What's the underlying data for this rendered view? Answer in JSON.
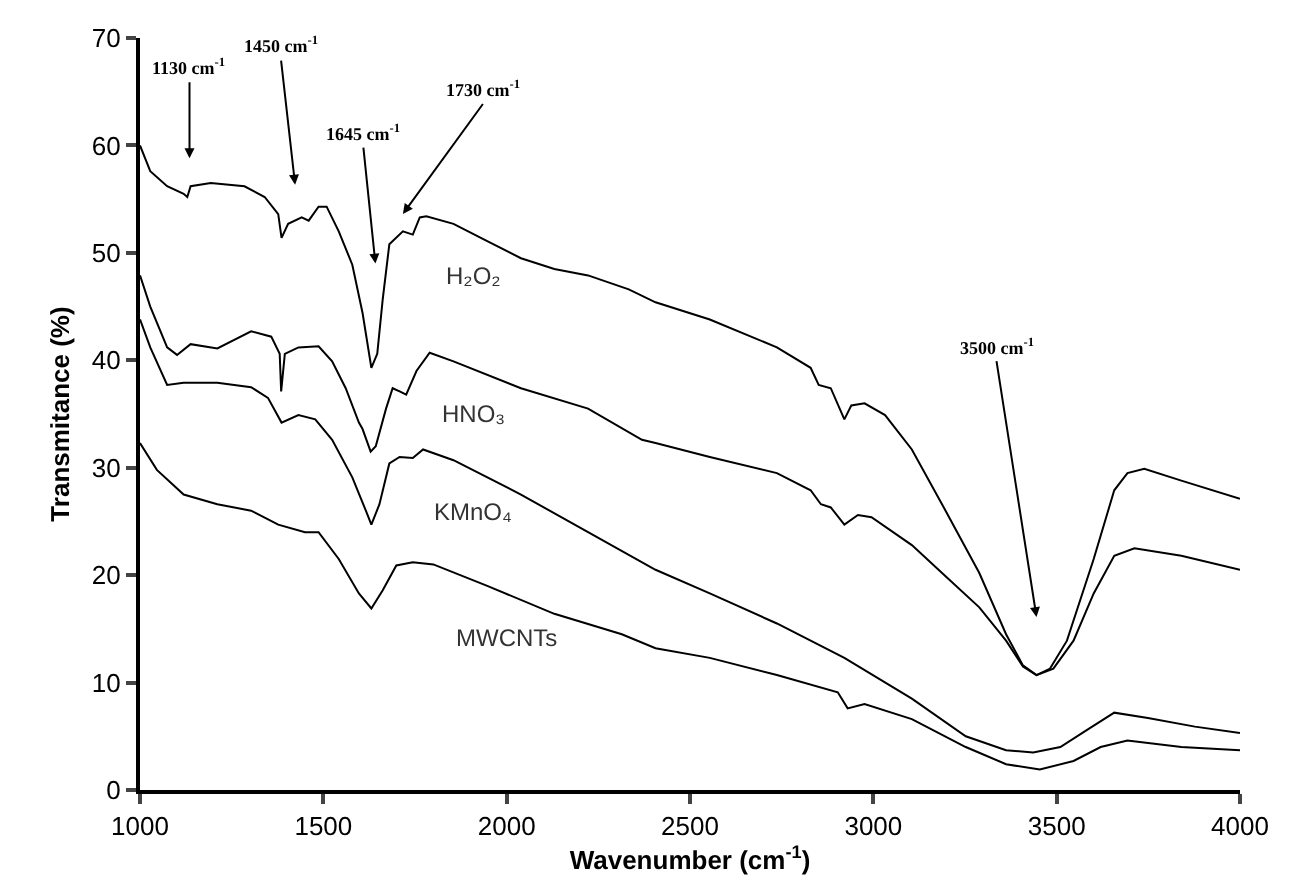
{
  "chart_data": {
    "type": "line",
    "xlabel": "Wavenumber (cm$^{-1}$)",
    "ylabel": "Transmitance (%)",
    "xlim": [
      1000,
      4000
    ],
    "xticks": [
      1000,
      1500,
      2000,
      2500,
      3000,
      3500,
      4000
    ],
    "ylim": [
      0,
      70
    ],
    "yticks": [
      0,
      10,
      20,
      30,
      40,
      50,
      60,
      70
    ],
    "legend": false,
    "marker": "none",
    "line_style": "solid",
    "series": [
      {
        "name": "H₂O₂",
        "color": "#000000",
        "x": [
          1000,
          1028,
          1074,
          1119,
          1129,
          1138,
          1193,
          1285,
          1340,
          1377,
          1386,
          1404,
          1441,
          1460,
          1487,
          1509,
          1542,
          1579,
          1607,
          1631,
          1647,
          1662,
          1680,
          1717,
          1744,
          1763,
          1781,
          1855,
          1947,
          2039,
          2130,
          2222,
          2333,
          2406,
          2554,
          2737,
          2829,
          2851,
          2884,
          2921,
          2940,
          2976,
          3032,
          3105,
          3197,
          3289,
          3362,
          3408,
          3445,
          3482,
          3528,
          3601,
          3657,
          3693,
          3739,
          3840,
          4000
        ],
        "values": [
          60,
          57.6,
          56.2,
          55.5,
          55.2,
          56.2,
          56.5,
          56.2,
          55.2,
          53.6,
          51.4,
          52.7,
          53.3,
          53.0,
          54.3,
          54.3,
          52.0,
          48.9,
          44.4,
          39.3,
          40.6,
          45.7,
          50.8,
          52.0,
          51.7,
          53.3,
          53.4,
          52.7,
          51.1,
          49.5,
          48.5,
          47.9,
          46.6,
          45.4,
          43.8,
          41.2,
          39.3,
          37.7,
          37.4,
          34.5,
          35.8,
          36.0,
          34.9,
          31.7,
          26.0,
          20.2,
          14.5,
          11.6,
          10.7,
          11.3,
          13.9,
          21.5,
          27.9,
          29.5,
          29.9,
          28.8,
          27.1
        ]
      },
      {
        "name": "HNO₃",
        "color": "#000000",
        "x": [
          1000,
          1028,
          1074,
          1101,
          1138,
          1211,
          1303,
          1358,
          1381,
          1385,
          1395,
          1432,
          1487,
          1524,
          1561,
          1597,
          1607,
          1629,
          1643,
          1671,
          1689,
          1708,
          1726,
          1754,
          1790,
          1855,
          2039,
          2222,
          2369,
          2406,
          2554,
          2737,
          2829,
          2857,
          2884,
          2921,
          2958,
          2995,
          3105,
          3197,
          3289,
          3362,
          3408,
          3445,
          3491,
          3546,
          3601,
          3657,
          3712,
          3840,
          4000
        ],
        "values": [
          47.9,
          45.0,
          41.2,
          40.5,
          41.5,
          41.1,
          42.7,
          42.2,
          40.6,
          37.1,
          40.6,
          41.2,
          41.3,
          39.9,
          37.4,
          34.2,
          33.6,
          31.5,
          32.0,
          35.5,
          37.4,
          37.1,
          36.8,
          39.0,
          40.7,
          39.9,
          37.4,
          35.5,
          32.6,
          32.3,
          31.0,
          29.5,
          27.9,
          26.6,
          26.3,
          24.7,
          25.6,
          25.4,
          22.8,
          19.9,
          17.0,
          13.9,
          11.5,
          10.7,
          11.3,
          13.9,
          18.3,
          21.8,
          22.5,
          21.8,
          20.5
        ]
      },
      {
        "name": "KMnO₄",
        "color": "#000000",
        "x": [
          1000,
          1028,
          1074,
          1119,
          1211,
          1303,
          1349,
          1386,
          1432,
          1478,
          1524,
          1579,
          1616,
          1631,
          1653,
          1680,
          1708,
          1744,
          1772,
          1855,
          2039,
          2222,
          2406,
          2554,
          2737,
          2921,
          3105,
          3252,
          3362,
          3436,
          3510,
          3583,
          3657,
          3749,
          3877,
          4000
        ],
        "values": [
          43.8,
          41.2,
          37.7,
          37.9,
          37.9,
          37.5,
          36.5,
          34.2,
          34.9,
          34.5,
          32.6,
          29.1,
          26.0,
          24.7,
          26.6,
          30.4,
          31.0,
          30.9,
          31.7,
          30.7,
          27.5,
          24.0,
          20.5,
          18.3,
          15.5,
          12.3,
          8.5,
          5.0,
          3.7,
          3.5,
          4.0,
          5.6,
          7.2,
          6.7,
          5.9,
          5.3
        ]
      },
      {
        "name": "MWCNTs",
        "color": "#000000",
        "x": [
          1000,
          1046,
          1119,
          1211,
          1303,
          1377,
          1450,
          1487,
          1542,
          1597,
          1631,
          1662,
          1699,
          1744,
          1800,
          1947,
          2130,
          2314,
          2406,
          2554,
          2737,
          2903,
          2930,
          2976,
          3105,
          3252,
          3362,
          3454,
          3546,
          3620,
          3693,
          3840,
          4000
        ],
        "values": [
          32.3,
          29.8,
          27.5,
          26.6,
          26.0,
          24.7,
          24.0,
          24.0,
          21.5,
          18.3,
          16.9,
          18.6,
          20.9,
          21.2,
          21.0,
          19.0,
          16.4,
          14.5,
          13.2,
          12.3,
          10.7,
          9.1,
          7.6,
          8.0,
          6.6,
          4.0,
          2.4,
          1.9,
          2.7,
          4.0,
          4.6,
          4.0,
          3.7
        ]
      }
    ],
    "annotations": [
      "1130 cm$^{-1}$",
      "1450 cm$^{-1}$",
      "1645 cm$^{-1}$",
      "1730 cm$^{-1}$",
      "3500 cm$^{-1}$"
    ]
  }
}
